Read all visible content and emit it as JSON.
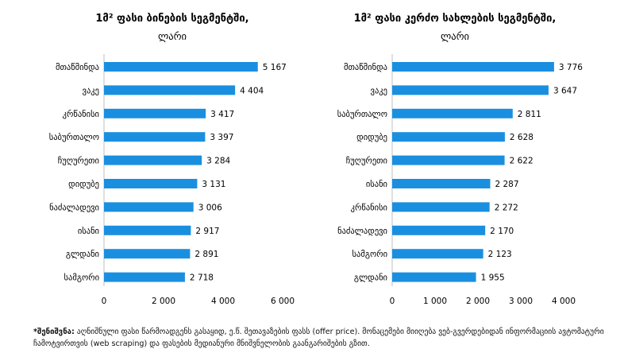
{
  "chart_data": [
    {
      "type": "bar",
      "orientation": "horizontal",
      "title": "1მ² ფასი ბინების სეგმენტში,",
      "subtitle": "ლარი",
      "categories": [
        "მთაწმინდა",
        "ვაკე",
        "კრწანისი",
        "საბურთალო",
        "ჩუღურეთი",
        "დიდუბე",
        "ნაძალადევი",
        "ისანი",
        "გლდანი",
        "სამგორი"
      ],
      "values": [
        5167,
        4404,
        3417,
        3397,
        3284,
        3131,
        3006,
        2917,
        2891,
        2718
      ],
      "value_labels": [
        "5 167",
        "4 404",
        "3 417",
        "3 397",
        "3 284",
        "3 131",
        "3 006",
        "2 917",
        "2 891",
        "2 718"
      ],
      "xlim": [
        0,
        6000
      ],
      "ticks": [
        0,
        2000,
        4000,
        6000
      ],
      "tick_labels": [
        "0",
        "2 000",
        "4 000",
        "6 000"
      ],
      "grid": false,
      "bar_color": "#1a8fe0"
    },
    {
      "type": "bar",
      "orientation": "horizontal",
      "title": "1მ² ფასი კერძო სახლების სეგმენტში,",
      "subtitle": "ლარი",
      "categories": [
        "მთაწმინდა",
        "ვაკე",
        "საბურთალო",
        "დიდუბე",
        "ჩუღურეთი",
        "ისანი",
        "კრწანისი",
        "ნაძალადევი",
        "სამგორი",
        "გლდანი"
      ],
      "values": [
        3776,
        3647,
        2811,
        2628,
        2622,
        2287,
        2272,
        2170,
        2123,
        1955
      ],
      "value_labels": [
        "3 776",
        "3 647",
        "2 811",
        "2 628",
        "2 622",
        "2 287",
        "2 272",
        "2 170",
        "2 123",
        "1 955"
      ],
      "xlim": [
        0,
        4000
      ],
      "ticks": [
        0,
        1000,
        2000,
        3000,
        4000
      ],
      "tick_labels": [
        "0",
        "1 000",
        "2 000",
        "3 000",
        "4 000"
      ],
      "grid": false,
      "bar_color": "#1a8fe0"
    }
  ],
  "footnote": {
    "label": "*შენიშვნა:",
    "text": " აღნიშნული ფასი წარმოადგენს გასაყიდ, ე.წ. შეთავაზების ფასს (offer price). მონაცემები მიიღება ვებ-გვერდებიდან ინფორმაციის ავტომატური ჩამოტვირთვის (web scraping) და ფასების მედიანური მნიშვნელობის გაანგარიშების გზით."
  }
}
